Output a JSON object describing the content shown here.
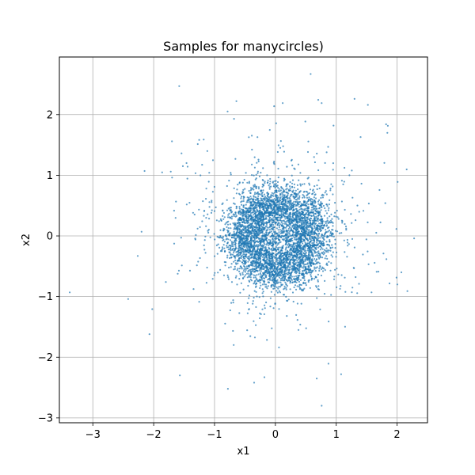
{
  "chart_data": {
    "type": "scatter",
    "title": "Samples for manycircles)",
    "xlabel": "x1",
    "ylabel": "x2",
    "xlim": [
      -3.55,
      2.5
    ],
    "ylim": [
      -3.08,
      2.95
    ],
    "xticks": [
      -3,
      -2,
      -1,
      0,
      1,
      2
    ],
    "yticks": [
      -3,
      -2,
      -1,
      0,
      1,
      2
    ],
    "xtick_labels": [
      "−3",
      "−2",
      "−1",
      "0",
      "1",
      "2"
    ],
    "ytick_labels": [
      "−3",
      "−2",
      "−1",
      "0",
      "1",
      "2"
    ],
    "grid": true,
    "point_color": "#1f77b4",
    "point_alpha": 0.7,
    "distribution": {
      "description": "dense ring centered near origin",
      "ring_center": [
        0.05,
        0.0
      ],
      "ring_radius": 0.55,
      "ring_spread": 0.2,
      "outlier_spread": 0.75
    },
    "outliers": [
      [
        -3.38,
        -0.93
      ],
      [
        -2.42,
        -1.04
      ],
      [
        -2.2,
        0.07
      ],
      [
        -2.15,
        1.07
      ],
      [
        -1.58,
        2.47
      ],
      [
        -0.68,
        1.93
      ],
      [
        0.58,
        2.67
      ],
      [
        0.76,
        2.19
      ],
      [
        1.3,
        2.26
      ],
      [
        1.52,
        2.16
      ],
      [
        1.82,
        1.84
      ],
      [
        1.84,
        1.7
      ],
      [
        2.28,
        -0.04
      ],
      [
        2.07,
        -0.6
      ],
      [
        -1.57,
        -2.3
      ],
      [
        -0.78,
        -2.52
      ],
      [
        -0.35,
        -2.42
      ],
      [
        0.68,
        -2.35
      ],
      [
        0.76,
        -2.8
      ],
      [
        1.08,
        -2.28
      ],
      [
        -0.18,
        -2.33
      ],
      [
        -1.52,
        1.15
      ],
      [
        -1.7,
        1.56
      ],
      [
        -2.07,
        -1.62
      ],
      [
        1.4,
        1.63
      ],
      [
        2.01,
        0.89
      ],
      [
        0.12,
        2.19
      ],
      [
        -0.02,
        2.14
      ],
      [
        -1.8,
        -0.76
      ],
      [
        1.58,
        -0.93
      ]
    ]
  }
}
